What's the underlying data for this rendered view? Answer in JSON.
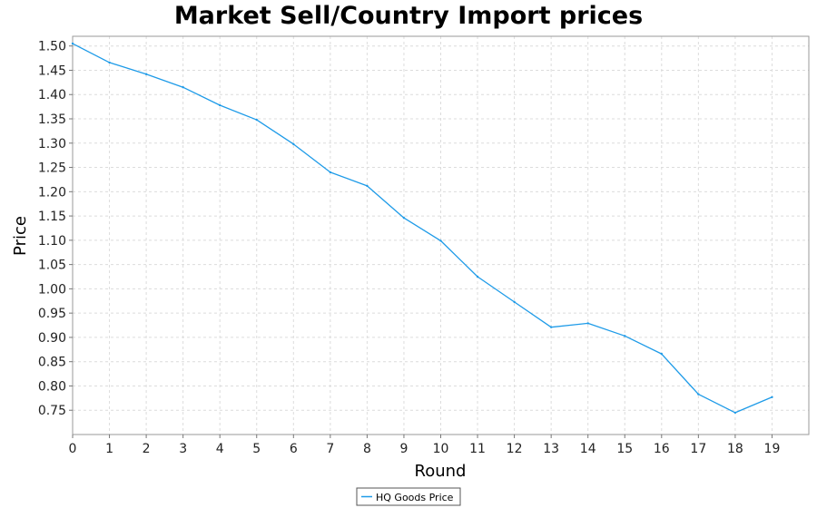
{
  "chart_data": {
    "type": "line",
    "title": "Market Sell/Country Import prices",
    "xlabel": "Round",
    "ylabel": "Price",
    "xlim": [
      0,
      20
    ],
    "ylim": [
      0.7,
      1.52
    ],
    "x_ticks": [
      0,
      1,
      2,
      3,
      4,
      5,
      6,
      7,
      8,
      9,
      10,
      11,
      12,
      13,
      14,
      15,
      16,
      17,
      18,
      19
    ],
    "y_ticks": [
      0.75,
      0.8,
      0.85,
      0.9,
      0.95,
      1.0,
      1.05,
      1.1,
      1.15,
      1.2,
      1.25,
      1.3,
      1.35,
      1.4,
      1.45,
      1.5
    ],
    "grid": true,
    "legend_position": "bottom-center",
    "series": [
      {
        "name": "HQ Goods Price",
        "color": "#1e9be8",
        "x": [
          0,
          1,
          2,
          3,
          4,
          5,
          6,
          7,
          8,
          9,
          10,
          11,
          12,
          13,
          14,
          15,
          16,
          17,
          18,
          19
        ],
        "y": [
          1.505,
          1.466,
          1.442,
          1.415,
          1.378,
          1.348,
          1.298,
          1.24,
          1.212,
          1.146,
          1.099,
          1.025,
          0.973,
          0.921,
          0.929,
          0.903,
          0.866,
          0.783,
          0.745,
          0.777
        ]
      }
    ]
  }
}
